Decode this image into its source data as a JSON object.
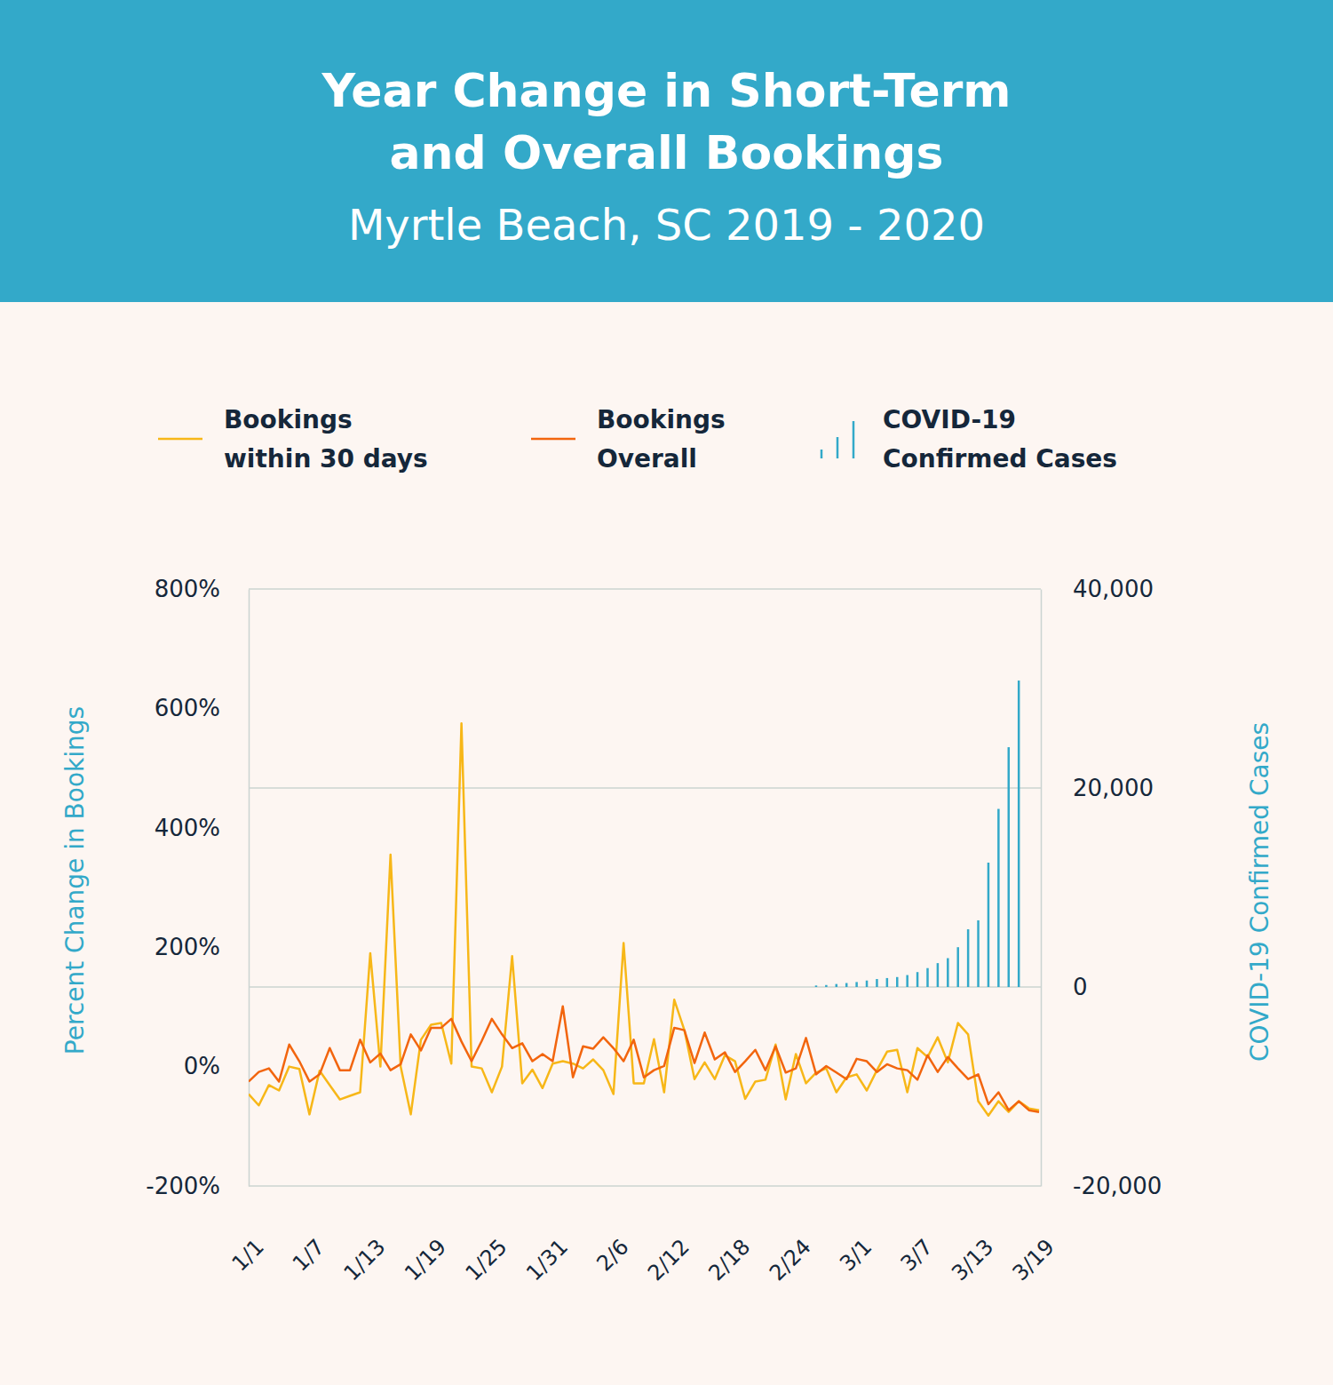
{
  "chart_data": {
    "type": "line",
    "title": [
      "Year Change in Short-Term",
      "and Overall Bookings"
    ],
    "subtitle": "Myrtle Beach, SC 2019 - 2020",
    "y_label": "Percent Change in Bookings",
    "y2_label": "COVID-19 Confirmed Cases",
    "legend": "top",
    "grid": true,
    "categories": [
      "1/1",
      null,
      null,
      null,
      null,
      null,
      "1/7",
      null,
      null,
      null,
      null,
      null,
      "1/13",
      null,
      null,
      null,
      null,
      null,
      "1/19",
      null,
      null,
      null,
      null,
      null,
      "1/25",
      null,
      null,
      null,
      null,
      null,
      "1/31",
      null,
      null,
      null,
      null,
      null,
      "2/6",
      null,
      null,
      null,
      null,
      null,
      "2/12",
      null,
      null,
      null,
      null,
      null,
      "2/18",
      null,
      null,
      null,
      null,
      null,
      "2/24",
      null,
      null,
      null,
      null,
      null,
      "3/1",
      null,
      null,
      null,
      null,
      null,
      "3/7",
      null,
      null,
      null,
      null,
      null,
      "3/13",
      null,
      null,
      null,
      null,
      null,
      "3/19"
    ],
    "ylim": [
      -200,
      800
    ],
    "yticks": [
      {
        "value": -200,
        "label": "-200%"
      },
      {
        "value": 0,
        "label": "0%"
      },
      {
        "value": 200,
        "label": "200%"
      },
      {
        "value": 400,
        "label": "400%"
      },
      {
        "value": 600,
        "label": "600%"
      },
      {
        "value": 800,
        "label": "800%"
      }
    ],
    "y2lim": [
      -20000,
      40000
    ],
    "y2ticks": [
      {
        "value": -20000,
        "label": "-20,000"
      },
      0,
      {
        "value": 20000,
        "label": "20,000"
      },
      {
        "value": 40000,
        "label": "40,000"
      }
    ],
    "series": [
      {
        "name": "Bookings within 30 days",
        "color": "#f7b718",
        "type": "line",
        "values": [
          -46,
          -65,
          -31,
          -40,
          0,
          -4,
          -80,
          -7,
          -31,
          -55,
          -49,
          -43,
          190,
          0,
          355,
          0,
          -80,
          45,
          70,
          73,
          5,
          575,
          0,
          -3,
          -43,
          0,
          185,
          -28,
          -5,
          -36,
          5,
          9,
          5,
          -3,
          12,
          -6,
          -46,
          207,
          -28,
          -28,
          46,
          -43,
          112,
          61,
          -21,
          7,
          -21,
          19,
          9,
          -54,
          -25,
          -22,
          37,
          -55,
          21,
          -28,
          -10,
          -3,
          -43,
          -18,
          -13,
          -40,
          -6,
          25,
          28,
          -43,
          31,
          16,
          49,
          7,
          73,
          54,
          -58,
          -82,
          -58,
          -76,
          -58,
          -70,
          -73
        ]
      },
      {
        "name": "Bookings Overall",
        "color": "#f2650e",
        "type": "line",
        "values": [
          -25,
          -9,
          -3,
          -25,
          37,
          9,
          -25,
          -13,
          31,
          -6,
          -6,
          45,
          7,
          22,
          -6,
          4,
          54,
          27,
          65,
          65,
          80,
          42,
          9,
          43,
          80,
          54,
          31,
          39,
          9,
          21,
          9,
          101,
          -18,
          34,
          30,
          49,
          31,
          9,
          45,
          -18,
          -6,
          1,
          65,
          61,
          6,
          57,
          12,
          24,
          -9,
          9,
          28,
          -6,
          34,
          -10,
          -3,
          48,
          -13,
          1,
          -10,
          -21,
          13,
          9,
          -9,
          4,
          -3,
          -6,
          -22,
          19,
          -9,
          16,
          -3,
          -21,
          -13,
          -63,
          -43,
          -73,
          -58,
          -73,
          -76
        ]
      },
      {
        "name": "COVID-19 Confirmed Cases",
        "color": "#33a9c9",
        "type": "bar",
        "axis": "y2",
        "values": [
          null,
          null,
          null,
          null,
          null,
          null,
          null,
          null,
          null,
          null,
          null,
          null,
          null,
          null,
          null,
          null,
          null,
          null,
          null,
          null,
          null,
          null,
          null,
          null,
          null,
          null,
          null,
          null,
          null,
          null,
          null,
          null,
          null,
          null,
          null,
          null,
          null,
          null,
          null,
          null,
          null,
          null,
          null,
          null,
          null,
          null,
          null,
          null,
          null,
          null,
          null,
          null,
          null,
          null,
          null,
          null,
          150,
          200,
          300,
          400,
          500,
          650,
          800,
          900,
          1000,
          1200,
          1500,
          1900,
          2400,
          2900,
          4000,
          5800,
          6700,
          12500,
          17900,
          24100,
          30800,
          null,
          null
        ]
      }
    ]
  }
}
